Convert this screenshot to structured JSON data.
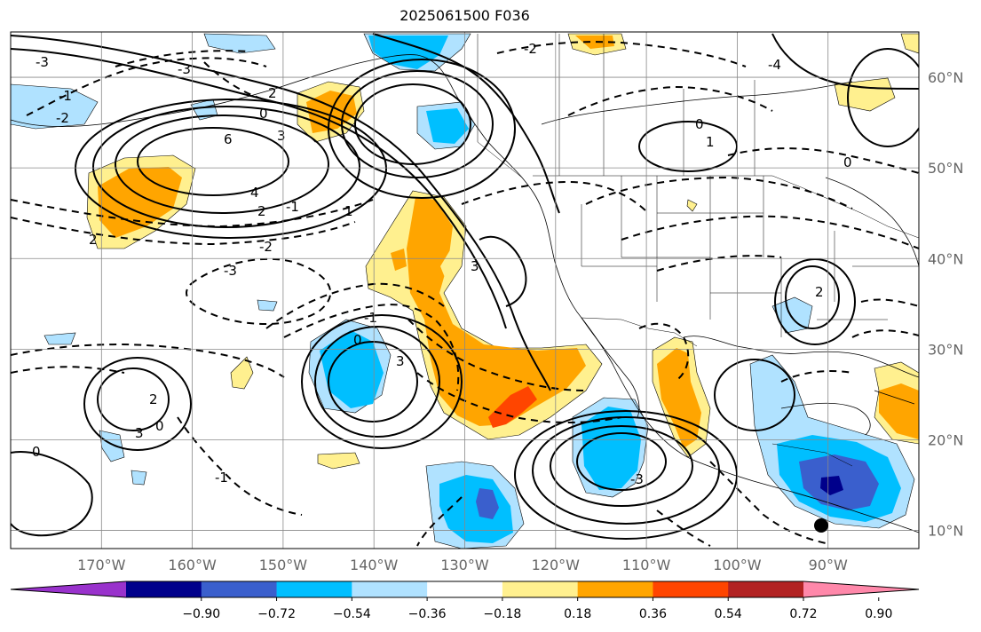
{
  "title": "2025061500 F036",
  "map": {
    "lon_range": [
      -180,
      -80
    ],
    "lat_range": [
      8,
      65
    ],
    "lon_ticks": [
      "170°W",
      "160°W",
      "150°W",
      "140°W",
      "130°W",
      "120°W",
      "110°W",
      "100°W",
      "90°W"
    ],
    "lat_ticks": [
      "10°N",
      "20°N",
      "30°N",
      "40°N",
      "50°N",
      "60°N"
    ],
    "gridlines": true,
    "contour_labels": [
      "6",
      "4",
      "2",
      "1",
      "0",
      "-1",
      "-2",
      "-3",
      "3",
      "0",
      "-1",
      "-2",
      "-3",
      "-4",
      "2",
      "3",
      "0",
      "1",
      "2",
      "3",
      "-3",
      "0",
      "2",
      "-1",
      "0",
      "-3",
      "-2",
      "-1",
      "0",
      "2",
      "3"
    ]
  },
  "colorbar": {
    "ticks": [
      "−0.90",
      "−0.72",
      "−0.54",
      "−0.36",
      "−0.18",
      "0.18",
      "0.36",
      "0.54",
      "0.72",
      "0.90"
    ],
    "colors": [
      "#9932cc",
      "#00008b",
      "#3a5fcd",
      "#00bfff",
      "#b0e2ff",
      "#ffffff",
      "#fff08f",
      "#ffa500",
      "#ff4500",
      "#b22222",
      "#ff88aa"
    ]
  }
}
